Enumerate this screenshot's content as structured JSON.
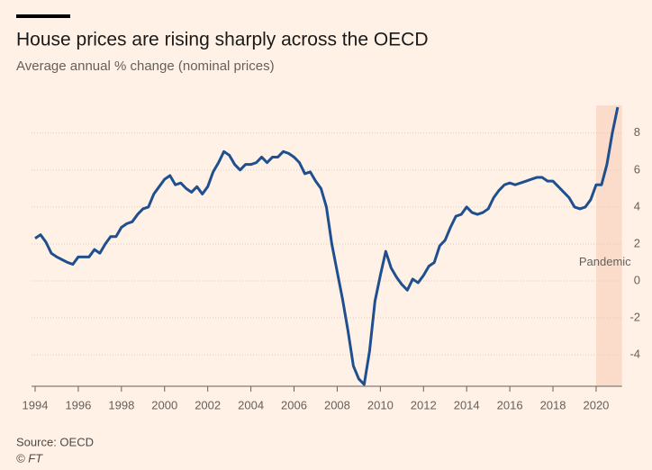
{
  "chart_data": {
    "type": "line",
    "title": "House prices are rising sharply across the OECD",
    "subtitle": "Average annual % change (nominal prices)",
    "source": "Source: OECD",
    "credit": "© FT",
    "shade": {
      "label": "Pandemic",
      "x": [
        2020,
        2021.2
      ],
      "color": "#fbdccb"
    },
    "xlim": [
      1994,
      2021.2
    ],
    "ylim": [
      -5.7,
      9.5
    ],
    "xticks": [
      1994,
      1996,
      1998,
      2000,
      2002,
      2004,
      2006,
      2008,
      2010,
      2012,
      2014,
      2016,
      2018,
      2020
    ],
    "yticks": [
      -4,
      -2,
      0,
      2,
      4,
      6,
      8
    ],
    "grid": true,
    "x": [
      1994,
      1994.25,
      1994.5,
      1994.75,
      1995,
      1995.25,
      1995.5,
      1995.75,
      1996,
      1996.25,
      1996.5,
      1996.75,
      1997,
      1997.25,
      1997.5,
      1997.75,
      1998,
      1998.25,
      1998.5,
      1998.75,
      1999,
      1999.25,
      1999.5,
      1999.75,
      2000,
      2000.25,
      2000.5,
      2000.75,
      2001,
      2001.25,
      2001.5,
      2001.75,
      2002,
      2002.25,
      2002.5,
      2002.75,
      2003,
      2003.25,
      2003.5,
      2003.75,
      2004,
      2004.25,
      2004.5,
      2004.75,
      2005,
      2005.25,
      2005.5,
      2005.75,
      2006,
      2006.25,
      2006.5,
      2006.75,
      2007,
      2007.25,
      2007.5,
      2007.75,
      2008,
      2008.25,
      2008.5,
      2008.75,
      2009,
      2009.25,
      2009.5,
      2009.75,
      2010,
      2010.25,
      2010.5,
      2010.75,
      2011,
      2011.25,
      2011.5,
      2011.75,
      2012,
      2012.25,
      2012.5,
      2012.75,
      2013,
      2013.25,
      2013.5,
      2013.75,
      2014,
      2014.25,
      2014.5,
      2014.75,
      2015,
      2015.25,
      2015.5,
      2015.75,
      2016,
      2016.25,
      2016.5,
      2016.75,
      2017,
      2017.25,
      2017.5,
      2017.75,
      2018,
      2018.25,
      2018.5,
      2018.75,
      2019,
      2019.25,
      2019.5,
      2019.75,
      2020,
      2020.25,
      2020.5,
      2020.75,
      2021
    ],
    "series": [
      {
        "color": "#1f4f8f",
        "values": [
          2.3,
          2.5,
          2.1,
          1.5,
          1.3,
          1.15,
          1.0,
          0.9,
          1.3,
          1.3,
          1.3,
          1.7,
          1.5,
          2.0,
          2.4,
          2.4,
          2.9,
          3.1,
          3.2,
          3.6,
          3.9,
          4.0,
          4.7,
          5.1,
          5.5,
          5.7,
          5.2,
          5.3,
          5.0,
          4.8,
          5.1,
          4.7,
          5.1,
          5.9,
          6.4,
          7.0,
          6.8,
          6.3,
          6.0,
          6.3,
          6.3,
          6.4,
          6.7,
          6.4,
          6.7,
          6.7,
          7.0,
          6.9,
          6.7,
          6.4,
          5.8,
          5.9,
          5.4,
          5.0,
          4.0,
          2.0,
          0.5,
          -1.0,
          -2.7,
          -4.6,
          -5.3,
          -5.6,
          -3.8,
          -1.1,
          0.3,
          1.6,
          0.7,
          0.2,
          -0.2,
          -0.5,
          0.1,
          -0.1,
          0.3,
          0.8,
          1.0,
          1.9,
          2.2,
          2.9,
          3.5,
          3.6,
          4.0,
          3.7,
          3.6,
          3.7,
          3.9,
          4.5,
          4.9,
          5.2,
          5.3,
          5.2,
          5.3,
          5.4,
          5.5,
          5.6,
          5.6,
          5.4,
          5.4,
          5.1,
          4.8,
          4.5,
          4.0,
          3.9,
          4.0,
          4.4,
          5.2,
          5.2,
          6.3,
          8.0,
          9.4
        ]
      }
    ]
  }
}
